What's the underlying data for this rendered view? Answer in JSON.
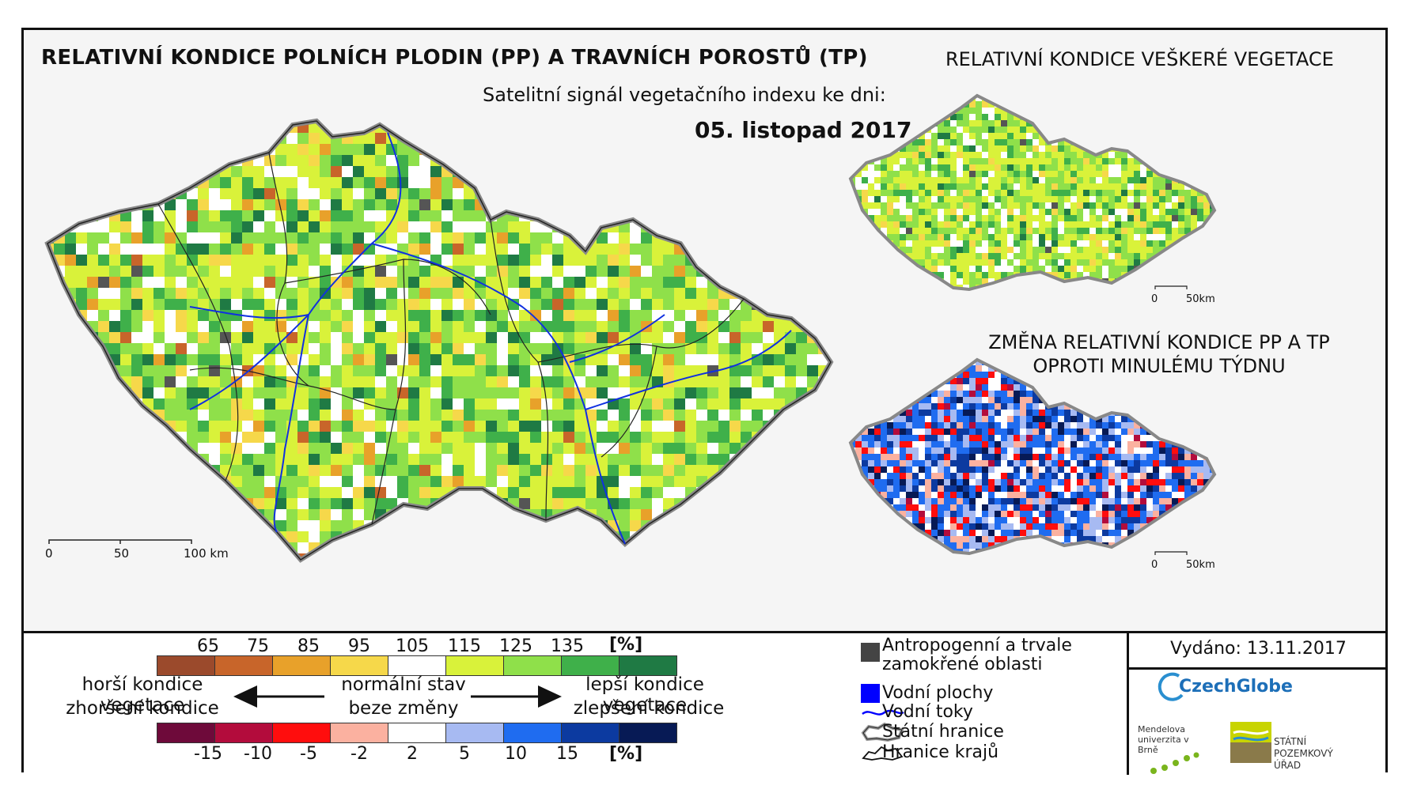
{
  "titles": {
    "main": "RELATIVNÍ KONDICE POLNÍCH PLODIN (PP) A TRAVNÍCH POROSTŮ (TP)",
    "subtitle": "Satelitní signál vegetačního indexu ke dni:",
    "date": "05. listopad 2017",
    "right_top": "RELATIVNÍ KONDICE VEŠKERÉ VEGETACE",
    "right_bottom_line1": "ZMĚNA RELATIVNÍ KONDICE PP A TP",
    "right_bottom_line2": "OPROTI MINULÉMU TÝDNU"
  },
  "scales": {
    "main": [
      "0",
      "50",
      "100 km"
    ],
    "small": [
      "0",
      "50km"
    ]
  },
  "condition_legend": {
    "ticks": [
      "65",
      "75",
      "85",
      "95",
      "105",
      "115",
      "125",
      "135"
    ],
    "unit": "[%]",
    "colors": [
      "#9b4a2c",
      "#c8652a",
      "#e8a12a",
      "#f6d84a",
      "#ffffff",
      "#d9f23a",
      "#8fe04a",
      "#3fb04a",
      "#1f7a44"
    ]
  },
  "change_legend": {
    "ticks": [
      "-15",
      "-10",
      "-5",
      "-2",
      "2",
      "5",
      "10",
      "15"
    ],
    "unit": "[%]",
    "colors": [
      "#6e0a3a",
      "#b30c3c",
      "#ff0d0d",
      "#fbb1a0",
      "#ffffff",
      "#a7baf2",
      "#1f6cf0",
      "#0c3aa0",
      "#071a55"
    ]
  },
  "arrow_labels": {
    "worse_1": "horší kondice vegetace",
    "worse_2": "zhoršení kondice",
    "normal_1": "normální stav",
    "normal_2": "beze změny",
    "better_1": "lepší kondice vegetace",
    "better_2": "zlepšení kondice"
  },
  "map_legend": [
    {
      "icon": "anthropogenic-square",
      "label": "Antropogenní a trvale zamokřené oblasti",
      "color": "#444444"
    },
    {
      "icon": "water-square",
      "label": "Vodní plochy",
      "color": "#0000ff"
    },
    {
      "icon": "river-line",
      "label": "Vodní toky",
      "color": "#0000ff"
    },
    {
      "icon": "state-border",
      "label": "Státní hranice"
    },
    {
      "icon": "region-border",
      "label": "Hranice krajů"
    }
  ],
  "issued": "Vydáno: 13.11.2017",
  "logos": {
    "czechglobe": "CzechGlobe",
    "mendel": "Mendelova univerzita v Brně",
    "spu": "STÁTNÍ POZEMKOVÝ ÚŘAD"
  }
}
